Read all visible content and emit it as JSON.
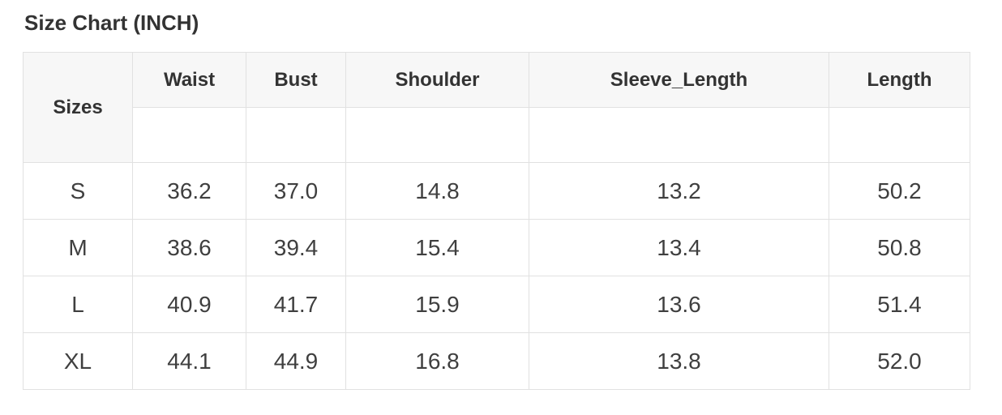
{
  "title": "Size Chart (INCH)",
  "table": {
    "corner_header": "Sizes",
    "columns": [
      "Waist",
      "Bust",
      "Shoulder",
      "Sleeve_Length",
      "Length"
    ],
    "rows": [
      {
        "size": "S",
        "values": [
          "36.2",
          "37.0",
          "14.8",
          "13.2",
          "50.2"
        ]
      },
      {
        "size": "M",
        "values": [
          "38.6",
          "39.4",
          "15.4",
          "13.4",
          "50.8"
        ]
      },
      {
        "size": "L",
        "values": [
          "40.9",
          "41.7",
          "15.9",
          "13.6",
          "51.4"
        ]
      },
      {
        "size": "XL",
        "values": [
          "44.1",
          "44.9",
          "16.8",
          "13.8",
          "52.0"
        ]
      }
    ]
  },
  "colors": {
    "header_bg": "#f7f7f7",
    "border": "#e1e1e1",
    "header_text": "#333333",
    "cell_text": "#3f3f3f",
    "page_bg": "#ffffff"
  },
  "chart_data": {
    "type": "table",
    "title": "Size Chart (INCH)",
    "unit": "INCH",
    "row_header_label": "Sizes",
    "columns": [
      "Waist",
      "Bust",
      "Shoulder",
      "Sleeve_Length",
      "Length"
    ],
    "row_labels": [
      "S",
      "M",
      "L",
      "XL"
    ],
    "series": [
      {
        "name": "Waist",
        "values": [
          36.2,
          38.6,
          40.9,
          44.1
        ]
      },
      {
        "name": "Bust",
        "values": [
          37.0,
          39.4,
          41.7,
          44.9
        ]
      },
      {
        "name": "Shoulder",
        "values": [
          14.8,
          15.4,
          15.9,
          16.8
        ]
      },
      {
        "name": "Sleeve_Length",
        "values": [
          13.2,
          13.4,
          13.6,
          13.8
        ]
      },
      {
        "name": "Length",
        "values": [
          50.2,
          50.8,
          51.4,
          52.0
        ]
      }
    ]
  }
}
